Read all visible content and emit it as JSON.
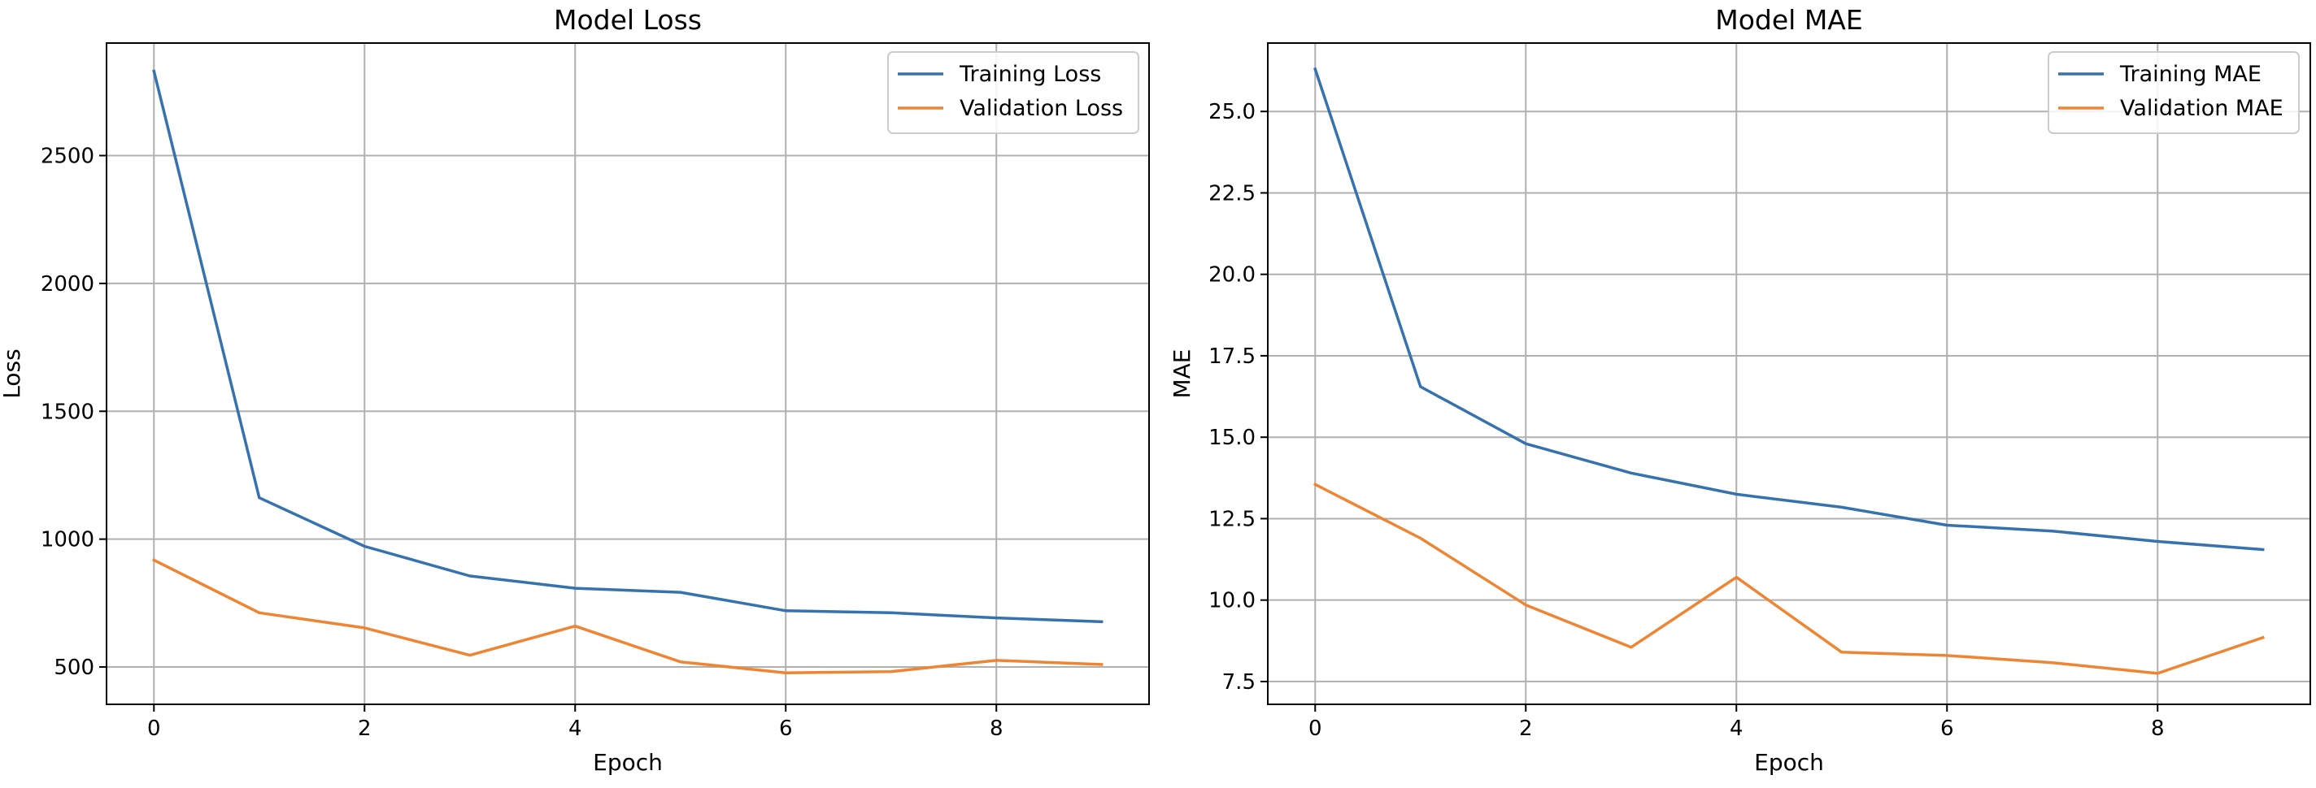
{
  "colors": {
    "training": "#3572ae",
    "validation": "#ef8533",
    "grid": "#b0b0b0",
    "axes": "#000000"
  },
  "chart_data": [
    {
      "type": "line",
      "title": "Model Loss",
      "xlabel": "Epoch",
      "ylabel": "Loss",
      "xlim": [
        -0.45,
        9.45
      ],
      "ylim": [
        354,
        2940
      ],
      "xticks": [
        0,
        2,
        4,
        6,
        8
      ],
      "yticks": [
        500,
        1000,
        1500,
        2000,
        2500
      ],
      "ytick_labels": [
        "500",
        "1000",
        "1500",
        "2000",
        "2500"
      ],
      "grid": true,
      "legend_position": "upper right",
      "x": [
        0,
        1,
        2,
        3,
        4,
        5,
        6,
        7,
        8,
        9
      ],
      "series": [
        {
          "name": "Training Loss",
          "color": "#3572ae",
          "values": [
            2830,
            1162,
            972,
            856,
            808,
            792,
            720,
            712,
            692,
            677
          ]
        },
        {
          "name": "Validation Loss",
          "color": "#ef8533",
          "values": [
            918,
            712,
            653,
            546,
            660,
            520,
            477,
            482,
            526,
            510
          ]
        }
      ]
    },
    {
      "type": "line",
      "title": "Model MAE",
      "xlabel": "Epoch",
      "ylabel": "MAE",
      "xlim": [
        -0.45,
        9.45
      ],
      "ylim": [
        6.8,
        27.1
      ],
      "xticks": [
        0,
        2,
        4,
        6,
        8
      ],
      "yticks": [
        7.5,
        10.0,
        12.5,
        15.0,
        17.5,
        20.0,
        22.5,
        25.0
      ],
      "ytick_labels": [
        "7.5",
        "10.0",
        "12.5",
        "15.0",
        "17.5",
        "20.0",
        "22.5",
        "25.0"
      ],
      "grid": true,
      "legend_position": "upper right",
      "x": [
        0,
        1,
        2,
        3,
        4,
        5,
        6,
        7,
        8,
        9
      ],
      "series": [
        {
          "name": "Training MAE",
          "color": "#3572ae",
          "values": [
            26.3,
            16.55,
            14.8,
            13.9,
            13.25,
            12.85,
            12.3,
            12.12,
            11.8,
            11.55
          ]
        },
        {
          "name": "Validation MAE",
          "color": "#ef8533",
          "values": [
            13.55,
            11.9,
            9.85,
            8.55,
            10.7,
            8.4,
            8.3,
            8.08,
            7.75,
            8.85
          ]
        }
      ]
    }
  ]
}
